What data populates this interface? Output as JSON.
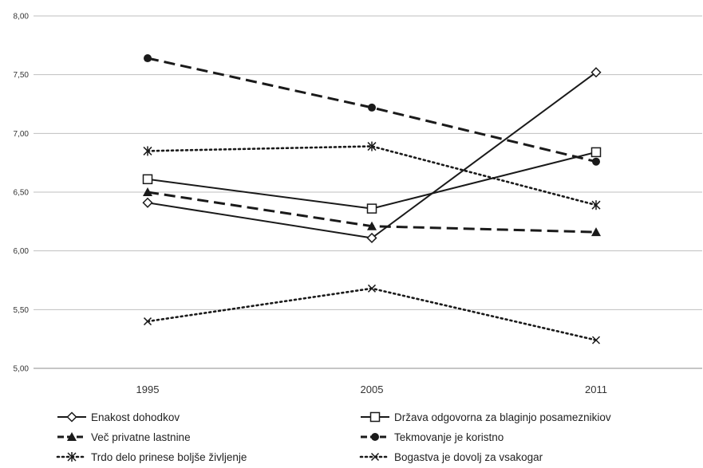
{
  "chart_data": {
    "type": "line",
    "title": "",
    "xlabel": "",
    "ylabel": "",
    "categories": [
      "1995",
      "2005",
      "2011"
    ],
    "ylim": [
      5.0,
      8.0
    ],
    "yticks": [
      "5,00",
      "5,50",
      "6,00",
      "6,50",
      "7,00",
      "7,50",
      "8,00"
    ],
    "grid": "horizontal",
    "legend_position": "bottom",
    "series": [
      {
        "name": "Enakost dohodkov",
        "values": [
          6.41,
          6.11,
          7.52
        ],
        "style": "solid",
        "marker": "diamond-open"
      },
      {
        "name": "Država odgovorna za blaginjo posameznikiov",
        "values": [
          6.61,
          6.36,
          6.84
        ],
        "style": "solid",
        "marker": "square-open"
      },
      {
        "name": "Več privatne lastnine",
        "values": [
          6.5,
          6.21,
          6.16
        ],
        "style": "dashed",
        "marker": "triangle-filled"
      },
      {
        "name": "Tekmovanje je koristno",
        "values": [
          7.64,
          7.22,
          6.76
        ],
        "style": "dashed",
        "marker": "circle-filled"
      },
      {
        "name": "Trdo delo prinese boljše življenje",
        "values": [
          6.85,
          6.89,
          6.39
        ],
        "style": "dotted",
        "marker": "asterisk"
      },
      {
        "name": "Bogastva je dovolj za vsakogar",
        "values": [
          5.4,
          5.68,
          5.24
        ],
        "style": "dotted",
        "marker": "x"
      }
    ],
    "colors": {
      "line": "#1a1a1a",
      "grid": "#bfbfbf",
      "axis": "#8c8c8c"
    }
  }
}
